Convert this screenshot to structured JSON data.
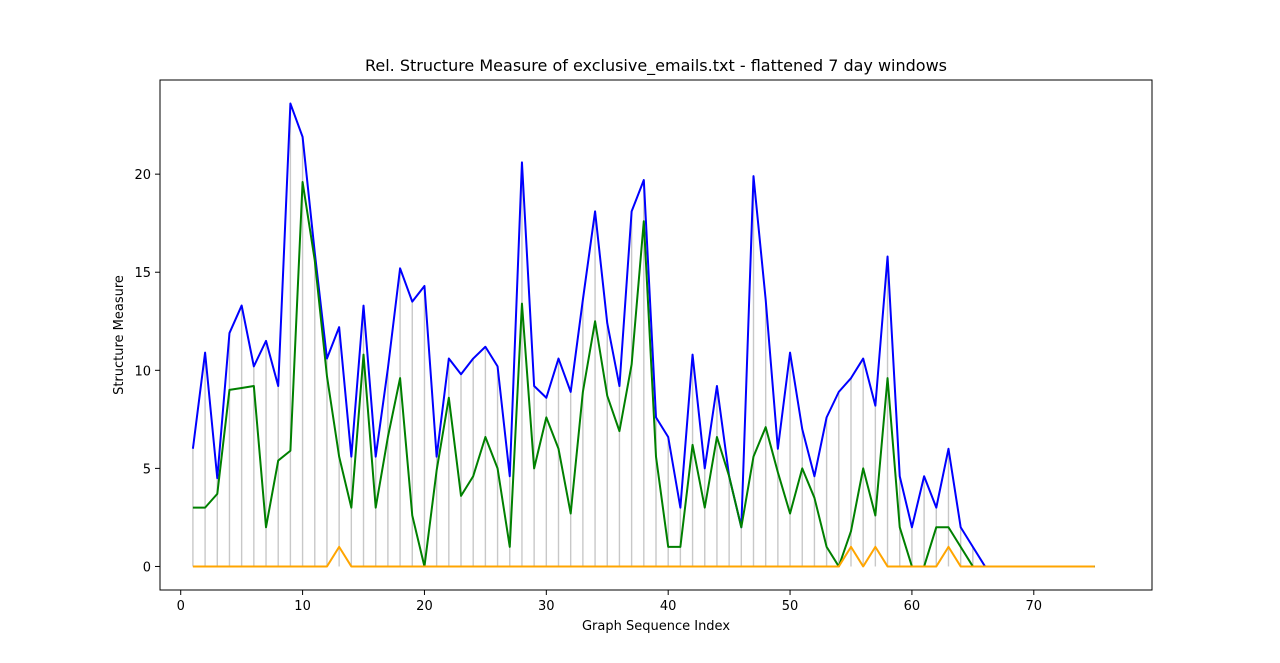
{
  "chart_data": {
    "type": "line",
    "title": "Rel. Structure Measure of exclusive_emails.txt - flattened 7 day windows",
    "xlabel": "Graph Sequence Index",
    "ylabel": "Structure Measure",
    "xlim": [
      -1.7,
      79.7
    ],
    "ylim": [
      -1.2,
      24.8
    ],
    "xticks": [
      0,
      10,
      20,
      30,
      40,
      50,
      60,
      70
    ],
    "yticks": [
      0,
      5,
      10,
      15,
      20
    ],
    "grid": false,
    "legend": "none",
    "x": [
      1,
      2,
      3,
      4,
      5,
      6,
      7,
      8,
      9,
      10,
      11,
      12,
      13,
      14,
      15,
      16,
      17,
      18,
      19,
      20,
      21,
      22,
      23,
      24,
      25,
      26,
      27,
      28,
      29,
      30,
      31,
      32,
      33,
      34,
      35,
      36,
      37,
      38,
      39,
      40,
      41,
      42,
      43,
      44,
      45,
      46,
      47,
      48,
      49,
      50,
      51,
      52,
      53,
      54,
      55,
      56,
      57,
      58,
      59,
      60,
      61,
      62,
      63,
      64,
      65,
      66,
      67,
      68,
      69,
      70,
      71,
      72,
      73,
      74,
      75
    ],
    "series": [
      {
        "color": "#0000ff",
        "values": [
          6.0,
          10.9,
          4.5,
          11.9,
          13.3,
          10.2,
          11.5,
          9.2,
          23.6,
          21.9,
          16.0,
          10.6,
          12.2,
          5.6,
          13.3,
          5.6,
          10.1,
          15.2,
          13.5,
          14.3,
          5.6,
          10.6,
          9.8,
          10.6,
          11.2,
          10.2,
          4.6,
          20.6,
          9.2,
          8.6,
          10.6,
          8.9,
          13.6,
          18.1,
          12.4,
          9.2,
          18.1,
          19.7,
          7.6,
          6.6,
          3.0,
          10.8,
          5.0,
          9.2,
          4.6,
          2.0,
          19.9,
          13.6,
          6.0,
          10.9,
          7.0,
          4.6,
          7.6,
          8.9,
          9.6,
          10.6,
          8.2,
          15.8,
          4.6,
          2.0,
          4.6,
          3.0,
          6.0,
          2.0,
          1.0,
          0.0,
          0.0,
          0.0,
          0.0,
          0.0,
          0.0,
          0.0,
          0.0,
          0.0,
          0.0
        ]
      },
      {
        "color": "#008000",
        "values": [
          3.0,
          3.0,
          3.7,
          9.0,
          9.1,
          9.2,
          2.0,
          5.4,
          5.9,
          19.6,
          15.6,
          9.7,
          5.6,
          3.0,
          10.8,
          3.0,
          6.6,
          9.6,
          2.6,
          0.0,
          4.9,
          8.6,
          3.6,
          4.6,
          6.6,
          5.0,
          1.0,
          13.4,
          5.0,
          7.6,
          6.0,
          2.7,
          8.9,
          12.5,
          8.7,
          6.9,
          10.3,
          17.6,
          5.6,
          1.0,
          1.0,
          6.2,
          3.0,
          6.6,
          4.6,
          2.0,
          5.6,
          7.1,
          4.8,
          2.7,
          5.0,
          3.5,
          1.0,
          0.0,
          1.8,
          5.0,
          2.6,
          9.6,
          2.0,
          0.0,
          0.0,
          2.0,
          2.0,
          1.0,
          0.0,
          0.0,
          0.0,
          0.0,
          0.0,
          0.0,
          0.0,
          0.0,
          0.0,
          0.0,
          0.0
        ]
      },
      {
        "color": "#ffa500",
        "values": [
          0,
          0,
          0,
          0,
          0,
          0,
          0,
          0,
          0,
          0,
          0,
          0,
          1.0,
          0,
          0,
          0,
          0,
          0,
          0,
          0,
          0,
          0,
          0,
          0,
          0,
          0,
          0,
          0,
          0,
          0,
          0,
          0,
          0,
          0,
          0,
          0,
          0,
          0,
          0,
          0,
          0,
          0,
          0,
          0,
          0,
          0,
          0,
          0,
          0,
          0,
          0,
          0,
          0,
          0,
          1.0,
          0,
          1.0,
          0,
          0,
          0,
          0,
          0,
          1.0,
          0,
          0,
          0,
          0,
          0,
          0,
          0,
          0,
          0,
          0,
          0,
          0
        ]
      }
    ]
  }
}
